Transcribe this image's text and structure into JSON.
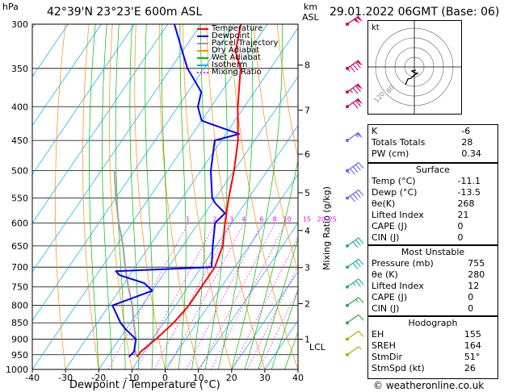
{
  "header": {
    "hpa_label": "hPa",
    "location": "42°39'N  23°23'E  600m  ASL",
    "km_label": "km",
    "asl_label": "ASL",
    "datetime": "29.01.2022  06GMT  (Base: 06)"
  },
  "axes": {
    "xlabel": "Dewpoint / Temperature (°C)",
    "mixing_label": "Mixing Ratio (g/kg)",
    "lcl_label": "LCL",
    "pressure_ticks": [
      "300",
      "350",
      "400",
      "450",
      "500",
      "550",
      "600",
      "650",
      "700",
      "750",
      "800",
      "850",
      "900",
      "950",
      "1000"
    ],
    "temp_ticks": [
      "-40",
      "-30",
      "-20",
      "-10",
      "0",
      "10",
      "20",
      "30",
      "40"
    ],
    "km_ticks": [
      "8",
      "7",
      "6",
      "5",
      "4",
      "3",
      "2",
      "1"
    ],
    "mixing_ticks": [
      "1",
      "2",
      "3",
      "4",
      "6",
      "8",
      "10",
      "15",
      "20",
      "25"
    ]
  },
  "legend": [
    {
      "label": "Temperature",
      "color": "#ff0000"
    },
    {
      "label": "Dewpoint",
      "color": "#0000ff"
    },
    {
      "label": "Parcel Trajectory",
      "color": "#999999"
    },
    {
      "label": "Dry Adiabat",
      "color": "#ff8c00"
    },
    {
      "label": "Wet Adiabat",
      "color": "#00bb00"
    },
    {
      "label": "Isotherm",
      "color": "#00aaff"
    },
    {
      "label": "Mixing Ratio",
      "color": "#ff00ff"
    }
  ],
  "colors": {
    "temperature": "#ff0000",
    "dewpoint": "#0000ff",
    "parcel": "#a0a0a0",
    "dry_adiabat": "#ff8c00",
    "wet_adiabat": "#00bb00",
    "isotherm": "#00aaff",
    "mixing_ratio": "#ff00ff"
  },
  "chart_data": {
    "type": "line",
    "title": "42°39'N  23°23'E  600m  ASL",
    "xlabel": "Dewpoint / Temperature (°C)",
    "ylabel": "hPa",
    "xlim": [
      -40,
      40
    ],
    "ylim": [
      1000,
      300
    ],
    "y_scale": "log",
    "series": [
      {
        "name": "Temperature",
        "points": [
          [
            957,
            -11.1
          ],
          [
            940,
            -11
          ],
          [
            900,
            -9
          ],
          [
            850,
            -7
          ],
          [
            800,
            -6
          ],
          [
            750,
            -6
          ],
          [
            700,
            -6
          ],
          [
            650,
            -8
          ],
          [
            600,
            -12
          ],
          [
            550,
            -16
          ],
          [
            500,
            -20
          ],
          [
            450,
            -25
          ],
          [
            400,
            -32
          ],
          [
            350,
            -39
          ],
          [
            330,
            -44
          ],
          [
            300,
            -48
          ]
        ]
      },
      {
        "name": "Dewpoint",
        "points": [
          [
            957,
            -13.5
          ],
          [
            940,
            -13
          ],
          [
            900,
            -15
          ],
          [
            870,
            -20
          ],
          [
            850,
            -23
          ],
          [
            800,
            -29
          ],
          [
            760,
            -20
          ],
          [
            740,
            -24
          ],
          [
            720,
            -33
          ],
          [
            710,
            -35
          ],
          [
            700,
            -7
          ],
          [
            650,
            -11
          ],
          [
            600,
            -15
          ],
          [
            580,
            -14
          ],
          [
            560,
            -19
          ],
          [
            550,
            -21
          ],
          [
            500,
            -27
          ],
          [
            450,
            -32
          ],
          [
            440,
            -26
          ],
          [
            420,
            -40
          ],
          [
            400,
            -44
          ],
          [
            380,
            -46
          ],
          [
            350,
            -55
          ],
          [
            330,
            -60
          ],
          [
            300,
            -68
          ]
        ]
      },
      {
        "name": "Parcel Trajectory",
        "points": [
          [
            957,
            -11.1
          ],
          [
            930,
            -13.5
          ],
          [
            900,
            -15
          ],
          [
            850,
            -19
          ],
          [
            800,
            -23
          ],
          [
            750,
            -28
          ],
          [
            700,
            -33
          ],
          [
            650,
            -38
          ],
          [
            600,
            -44
          ],
          [
            550,
            -50
          ],
          [
            500,
            -56
          ]
        ]
      }
    ]
  },
  "wind_barbs": [
    {
      "p": 300,
      "speed_kt": 100
    },
    {
      "p": 350,
      "speed_kt": 85
    },
    {
      "p": 380,
      "speed_kt": 75
    },
    {
      "p": 400,
      "speed_kt": 70
    },
    {
      "p": 450,
      "speed_kt": 55
    },
    {
      "p": 500,
      "speed_kt": 45
    },
    {
      "p": 550,
      "speed_kt": 40
    },
    {
      "p": 650,
      "speed_kt": 30
    },
    {
      "p": 700,
      "speed_kt": 30
    },
    {
      "p": 750,
      "speed_kt": 25
    },
    {
      "p": 800,
      "speed_kt": 15
    },
    {
      "p": 850,
      "speed_kt": 10
    },
    {
      "p": 900,
      "speed_kt": 10
    },
    {
      "p": 950,
      "speed_kt": 5
    }
  ],
  "hodograph": {
    "unit_label": "kt",
    "ring_labels": [
      "80",
      "120"
    ]
  },
  "indices": {
    "top": [
      {
        "label": "K",
        "value": "-6"
      },
      {
        "label": "Totals Totals",
        "value": "28"
      },
      {
        "label": "PW (cm)",
        "value": "0.34"
      }
    ],
    "surface": {
      "title": "Surface",
      "rows": [
        {
          "label": "Temp (°C)",
          "value": "-11.1"
        },
        {
          "label": "Dewp (°C)",
          "value": "-13.5"
        },
        {
          "label": "θe(K)",
          "value": "268"
        },
        {
          "label": "Lifted Index",
          "value": "21"
        },
        {
          "label": "CAPE (J)",
          "value": "0"
        },
        {
          "label": "CIN (J)",
          "value": "0"
        }
      ]
    },
    "most_unstable": {
      "title": "Most Unstable",
      "rows": [
        {
          "label": "Pressure (mb)",
          "value": "755"
        },
        {
          "label": "θe (K)",
          "value": "280"
        },
        {
          "label": "Lifted Index",
          "value": "12"
        },
        {
          "label": "CAPE (J)",
          "value": "0"
        },
        {
          "label": "CIN (J)",
          "value": "0"
        }
      ]
    },
    "hodograph": {
      "title": "Hodograph",
      "rows": [
        {
          "label": "EH",
          "value": "155"
        },
        {
          "label": "SREH",
          "value": "164"
        },
        {
          "label": "StmDir",
          "value": "51°"
        },
        {
          "label": "StmSpd (kt)",
          "value": "26"
        }
      ]
    }
  },
  "footer": {
    "copyright": "© weatheronline.co.uk"
  }
}
